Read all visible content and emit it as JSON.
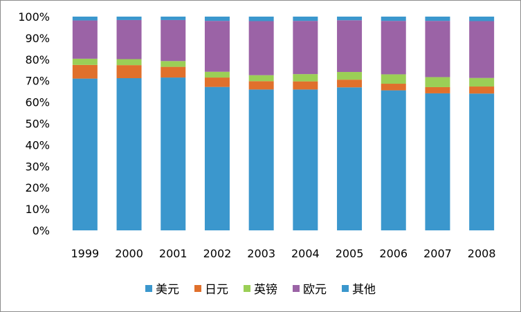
{
  "chart_data": {
    "type": "bar",
    "stacked": true,
    "percent": true,
    "categories": [
      "1999",
      "2000",
      "2001",
      "2002",
      "2003",
      "2004",
      "2005",
      "2006",
      "2007",
      "2008"
    ],
    "series": [
      {
        "name": "美元",
        "color": "#3b97cd",
        "values": [
          71.0,
          71.2,
          71.5,
          67.1,
          65.9,
          65.9,
          66.9,
          65.5,
          64.1,
          64.0
        ]
      },
      {
        "name": "日元",
        "color": "#e0702c",
        "values": [
          6.4,
          6.1,
          5.0,
          4.4,
          3.9,
          3.8,
          3.6,
          3.1,
          2.9,
          3.3
        ]
      },
      {
        "name": "英镑",
        "color": "#9bcf56",
        "values": [
          2.9,
          2.8,
          2.7,
          2.7,
          2.8,
          3.4,
          3.6,
          4.4,
          4.7,
          4.0
        ]
      },
      {
        "name": "欧元",
        "color": "#9b63a6",
        "values": [
          17.9,
          18.3,
          19.2,
          23.8,
          25.3,
          24.9,
          24.2,
          25.0,
          26.3,
          26.6
        ]
      },
      {
        "name": "其他",
        "color": "#3b97cd",
        "values": [
          1.8,
          1.6,
          1.6,
          2.0,
          2.1,
          2.0,
          1.7,
          2.0,
          2.0,
          2.1
        ]
      }
    ],
    "yticks": [
      "0%",
      "10%",
      "20%",
      "30%",
      "40%",
      "50%",
      "60%",
      "70%",
      "80%",
      "90%",
      "100%"
    ],
    "ylim": [
      0,
      100
    ],
    "grid": false,
    "legend_position": "bottom"
  }
}
